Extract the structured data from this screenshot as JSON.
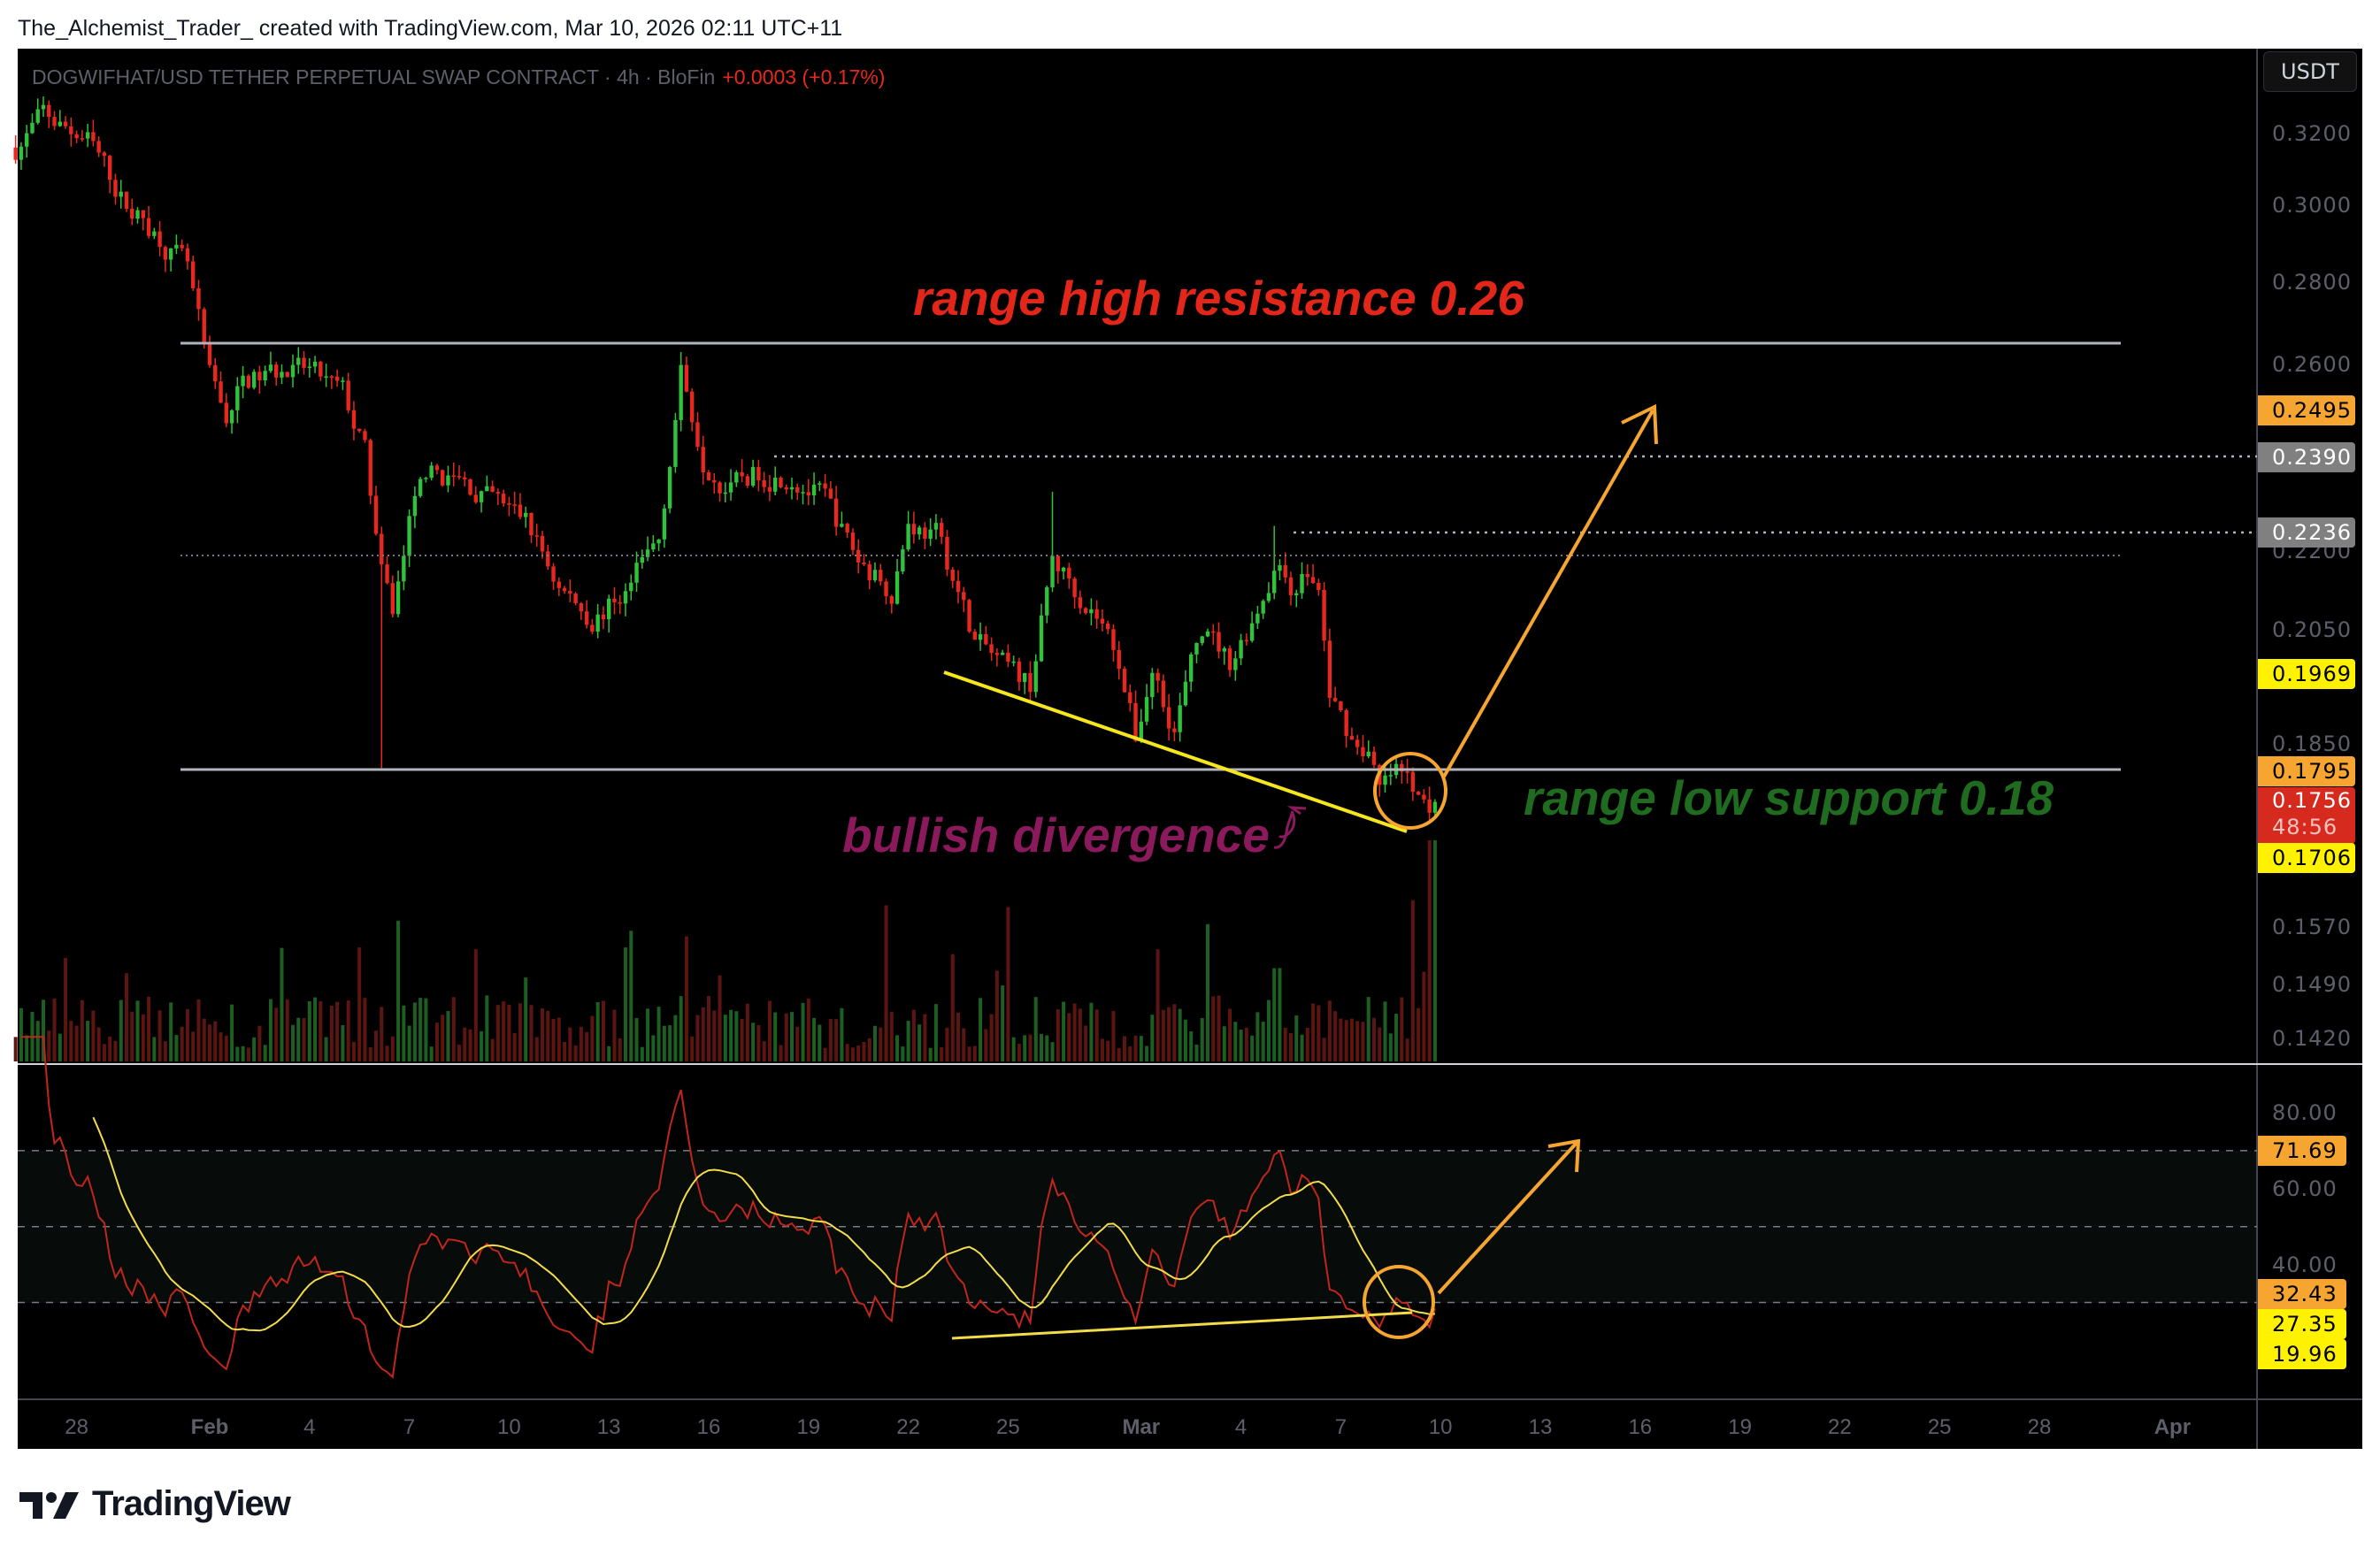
{
  "caption": "The_Alchemist_Trader_ created with TradingView.com, Mar 10, 2026 02:11 UTC+11",
  "legend": {
    "symbol": "DOGWIFHAT/USD TETHER PERPETUAL SWAP CONTRACT · 4h · BloFin",
    "change": "+0.0003 (+0.17%)"
  },
  "currency_button": "USDT",
  "brand": "TradingView",
  "colors": {
    "up": "#2fc23a",
    "down": "#e8281f",
    "rsi": "#c0261c",
    "rsi_ma": "#f2dc4a",
    "range_line": "#b2b5be",
    "trendline": "#f5e61e",
    "arrow": "#f7a531"
  },
  "annotations": {
    "range_high": "range high resistance 0.26",
    "range_low": "range low support 0.18",
    "divergence": "bullish divergence"
  },
  "chart_data": [
    {
      "type": "candlestick",
      "interval": "4h",
      "scale": "log",
      "ylim": [
        0.138,
        0.335
      ],
      "y_ticks": [
        "0.3200",
        "0.3000",
        "0.2800",
        "0.2600",
        "0.2200",
        "0.2050",
        "0.1850",
        "0.1570",
        "0.1490",
        "0.1420"
      ],
      "price_labels": [
        {
          "value": "0.2495",
          "color": "#f7a531"
        },
        {
          "value": "0.2390",
          "color": "#808080"
        },
        {
          "value": "0.2236",
          "color": "#808080"
        },
        {
          "value": "0.1969",
          "color": "#fff200"
        },
        {
          "value": "0.1795",
          "color": "#f7a531"
        },
        {
          "value": "0.1756",
          "sub": "48:56",
          "color": "#d62a1e"
        },
        {
          "value": "0.1706",
          "color": "#fff200"
        }
      ],
      "x_ticks": [
        {
          "date": "2026-01-28",
          "label": "28"
        },
        {
          "date": "2026-02-01",
          "label": "Feb",
          "bold": true
        },
        {
          "date": "2026-02-04",
          "label": "4"
        },
        {
          "date": "2026-02-07",
          "label": "7"
        },
        {
          "date": "2026-02-10",
          "label": "10"
        },
        {
          "date": "2026-02-13",
          "label": "13"
        },
        {
          "date": "2026-02-16",
          "label": "16"
        },
        {
          "date": "2026-02-19",
          "label": "19"
        },
        {
          "date": "2026-02-22",
          "label": "22"
        },
        {
          "date": "2026-02-25",
          "label": "25"
        },
        {
          "date": "2026-03-01",
          "label": "Mar",
          "bold": true
        },
        {
          "date": "2026-03-04",
          "label": "4"
        },
        {
          "date": "2026-03-07",
          "label": "7"
        },
        {
          "date": "2026-03-10",
          "label": "10"
        },
        {
          "date": "2026-03-13",
          "label": "13"
        },
        {
          "date": "2026-03-16",
          "label": "16"
        },
        {
          "date": "2026-03-19",
          "label": "19"
        },
        {
          "date": "2026-03-22",
          "label": "22"
        },
        {
          "date": "2026-03-25",
          "label": "25"
        },
        {
          "date": "2026-03-28",
          "label": "28"
        },
        {
          "date": "2026-04-01",
          "label": "Apr",
          "bold": true
        }
      ],
      "close_path": [
        [
          "2026-01-26T04:00",
          0.316
        ],
        [
          "2026-01-27T00:00",
          0.325
        ],
        [
          "2026-01-28T08:00",
          0.318
        ],
        [
          "2026-01-29T12:00",
          0.3
        ],
        [
          "2026-01-30T12:00",
          0.292
        ],
        [
          "2026-01-31T08:00",
          0.283
        ],
        [
          "2026-02-01T00:00",
          0.256
        ],
        [
          "2026-02-01T12:00",
          0.248
        ],
        [
          "2026-02-02T00:00",
          0.256
        ],
        [
          "2026-02-03T00:00",
          0.258
        ],
        [
          "2026-02-04T00:00",
          0.258
        ],
        [
          "2026-02-05T00:00",
          0.253
        ],
        [
          "2026-02-05T16:00",
          0.24
        ],
        [
          "2026-02-06T04:00",
          0.215
        ],
        [
          "2026-02-06T12:00",
          0.208
        ],
        [
          "2026-02-07T00:00",
          0.225
        ],
        [
          "2026-02-07T12:00",
          0.236
        ],
        [
          "2026-02-08T12:00",
          0.234
        ],
        [
          "2026-02-09T12:00",
          0.23
        ],
        [
          "2026-02-10T12:00",
          0.226
        ],
        [
          "2026-02-11T12:00",
          0.213
        ],
        [
          "2026-02-12T12:00",
          0.207
        ],
        [
          "2026-02-13T12:00",
          0.212
        ],
        [
          "2026-02-14T12:00",
          0.222
        ],
        [
          "2026-02-15T04:00",
          0.258
        ],
        [
          "2026-02-15T20:00",
          0.24
        ],
        [
          "2026-02-16T16:00",
          0.233
        ],
        [
          "2026-02-17T12:00",
          0.236
        ],
        [
          "2026-02-18T12:00",
          0.236
        ],
        [
          "2026-02-19T12:00",
          0.23
        ],
        [
          "2026-02-20T12:00",
          0.218
        ],
        [
          "2026-02-21T12:00",
          0.213
        ],
        [
          "2026-02-22T00:00",
          0.226
        ],
        [
          "2026-02-22T20:00",
          0.223
        ],
        [
          "2026-02-23T12:00",
          0.212
        ],
        [
          "2026-02-24T00:00",
          0.203
        ],
        [
          "2026-02-25T00:00",
          0.197
        ],
        [
          "2026-02-25T16:00",
          0.195
        ],
        [
          "2026-02-26T08:00",
          0.218
        ],
        [
          "2026-02-27T00:00",
          0.213
        ],
        [
          "2026-02-27T16:00",
          0.208
        ],
        [
          "2026-02-28T08:00",
          0.2
        ],
        [
          "2026-02-28T20:00",
          0.186
        ],
        [
          "2026-03-01T08:00",
          0.198
        ],
        [
          "2026-03-02T00:00",
          0.188
        ],
        [
          "2026-03-02T20:00",
          0.205
        ],
        [
          "2026-03-03T16:00",
          0.199
        ],
        [
          "2026-03-04T08:00",
          0.207
        ],
        [
          "2026-03-05T00:00",
          0.217
        ],
        [
          "2026-03-05T12:00",
          0.213
        ],
        [
          "2026-03-06T00:00",
          0.216
        ],
        [
          "2026-03-06T08:00",
          0.212
        ],
        [
          "2026-03-06T16:00",
          0.193
        ],
        [
          "2026-03-07T08:00",
          0.186
        ],
        [
          "2026-03-07T20:00",
          0.184
        ],
        [
          "2026-03-08T04:00",
          0.177
        ],
        [
          "2026-03-08T16:00",
          0.18
        ],
        [
          "2026-03-09T08:00",
          0.177
        ],
        [
          "2026-03-09T20:00",
          0.1756
        ]
      ],
      "wick_extremes": [
        [
          "2026-02-06T04:00",
          "low",
          0.181
        ],
        [
          "2026-02-15T04:00",
          "high",
          0.263
        ],
        [
          "2026-02-26T08:00",
          "high",
          0.232
        ],
        [
          "2026-03-05T00:00",
          "high",
          0.225
        ]
      ]
    },
    {
      "type": "line",
      "indicator": "RSI",
      "ylim": [
        10,
        90
      ],
      "y_ticks": [
        "80.00",
        "60.00",
        "40.00"
      ],
      "bands": [
        70,
        50,
        30
      ],
      "value_labels": [
        {
          "value": "71.69",
          "color": "#f7a531"
        },
        {
          "value": "32.43",
          "color": "#f7a531"
        },
        {
          "value": "27.35",
          "color": "#fff200"
        },
        {
          "value": "19.96",
          "color": "#fff200"
        }
      ]
    }
  ]
}
